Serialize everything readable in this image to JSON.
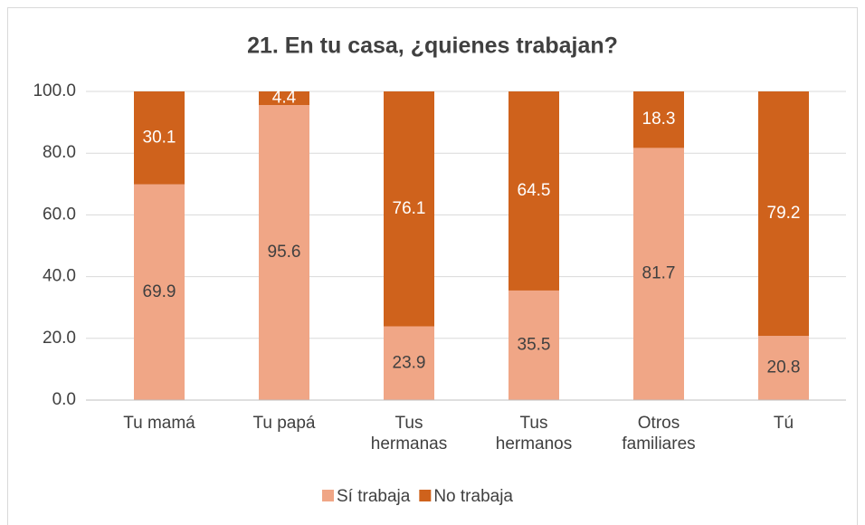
{
  "chart_data": {
    "type": "stacked_bar",
    "title": "21. En tu casa, ¿quienes trabajan?",
    "categories": [
      "Tu mamá",
      "Tu papá",
      "Tus hermanas",
      "Tus hermanos",
      "Otros familiares",
      "Tú"
    ],
    "series": [
      {
        "name": "Sí trabaja",
        "color": "#f0a686",
        "values": [
          69.9,
          95.6,
          23.9,
          35.5,
          81.7,
          20.8
        ]
      },
      {
        "name": "No trabaja",
        "color": "#cf621c",
        "values": [
          30.1,
          4.4,
          76.1,
          64.5,
          18.3,
          79.2
        ]
      }
    ],
    "ylim": [
      0,
      100
    ],
    "yticks": [
      {
        "value": 0,
        "label": "0.0"
      },
      {
        "value": 20,
        "label": "20.0"
      },
      {
        "value": 40,
        "label": "40.0"
      },
      {
        "value": 60,
        "label": "60.0"
      },
      {
        "value": 80,
        "label": "80.0"
      },
      {
        "value": 100,
        "label": "100.0"
      }
    ],
    "grid": true,
    "legend": "bottom"
  }
}
